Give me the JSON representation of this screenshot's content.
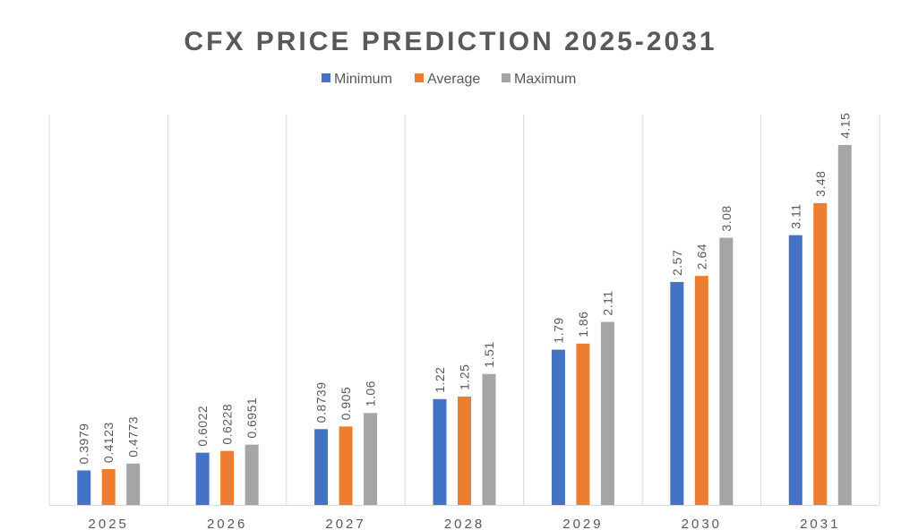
{
  "chart_data": {
    "type": "bar",
    "title": "CFX PRICE PREDICTION 2025-2031",
    "categories": [
      "2025",
      "2026",
      "2027",
      "2028",
      "2029",
      "2030",
      "2031"
    ],
    "series": [
      {
        "name": "Minimum",
        "color": "#4472C4",
        "values": [
          0.3979,
          0.6022,
          0.8739,
          1.22,
          1.79,
          2.57,
          3.11
        ],
        "labels": [
          "0.3979",
          "0.6022",
          "0.8739",
          "1.22",
          "1.79",
          "2.57",
          "3.11"
        ]
      },
      {
        "name": "Average",
        "color": "#ED7D31",
        "values": [
          0.4123,
          0.6228,
          0.905,
          1.25,
          1.86,
          2.64,
          3.48
        ],
        "labels": [
          "0.4123",
          "0.6228",
          "0.905",
          "1.25",
          "1.86",
          "2.64",
          "3.48"
        ]
      },
      {
        "name": "Maximum",
        "color": "#A5A5A5",
        "values": [
          0.4773,
          0.6951,
          1.06,
          1.51,
          2.11,
          3.08,
          4.15
        ],
        "labels": [
          "0.4773",
          "0.6951",
          "1.06",
          "1.51",
          "2.11",
          "3.08",
          "4.15"
        ]
      }
    ],
    "ylim": [
      0,
      4.5
    ],
    "legend_position": "top",
    "category_dividers": true,
    "colors": {
      "title": "#595959",
      "text": "#595959",
      "divider": "#D9D9D9"
    }
  }
}
